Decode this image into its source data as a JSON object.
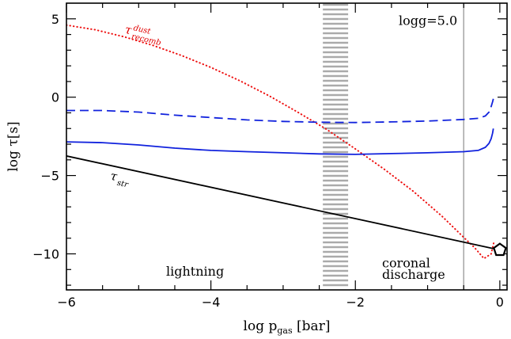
{
  "chart_data": {
    "type": "line",
    "xlabel": {
      "main": "log p",
      "sub": "gas",
      "unit": " [bar]"
    },
    "ylabel": "log τ[s]",
    "xlim": [
      -6.0,
      0.1
    ],
    "ylim": [
      -12.3,
      6.0
    ],
    "xticks": [
      {
        "value": -6,
        "label": "−6"
      },
      {
        "value": -4,
        "label": "−4"
      },
      {
        "value": -2,
        "label": "−2"
      },
      {
        "value": 0,
        "label": "0"
      }
    ],
    "yticks": [
      {
        "value": 5,
        "label": "5"
      },
      {
        "value": 0,
        "label": "0"
      },
      {
        "value": -5,
        "label": "−5"
      },
      {
        "value": -10,
        "label": "−10"
      }
    ],
    "series": [
      {
        "key": "tau-dust-recomb",
        "style": "dotted",
        "color": "#ee1111",
        "x": [
          -6.0,
          -5.6,
          -5.2,
          -4.8,
          -4.4,
          -4.0,
          -3.6,
          -3.2,
          -2.8,
          -2.4,
          -2.0,
          -1.6,
          -1.2,
          -0.8,
          -0.5,
          -0.35,
          -0.22,
          -0.12,
          -0.08
        ],
        "y": [
          4.6,
          4.3,
          3.85,
          3.3,
          2.65,
          1.9,
          1.05,
          0.1,
          -0.95,
          -2.05,
          -3.3,
          -4.6,
          -6.0,
          -7.6,
          -8.95,
          -9.6,
          -10.3,
          -10.0,
          -9.2
        ]
      },
      {
        "key": "tau-upper-dashed",
        "style": "dashed",
        "color": "#1122dd",
        "x": [
          -6.0,
          -5.5,
          -5.0,
          -4.5,
          -4.0,
          -3.5,
          -3.0,
          -2.5,
          -2.0,
          -1.5,
          -1.0,
          -0.5,
          -0.3,
          -0.2,
          -0.15,
          -0.12,
          -0.1,
          -0.09
        ],
        "y": [
          -0.85,
          -0.85,
          -0.95,
          -1.15,
          -1.3,
          -1.45,
          -1.55,
          -1.6,
          -1.62,
          -1.58,
          -1.52,
          -1.42,
          -1.35,
          -1.2,
          -0.95,
          -0.6,
          -0.3,
          -0.1
        ]
      },
      {
        "key": "tau-lower-solid",
        "style": "solid",
        "color": "#1122dd",
        "x": [
          -6.0,
          -5.5,
          -5.0,
          -4.5,
          -4.0,
          -3.5,
          -3.0,
          -2.5,
          -2.0,
          -1.5,
          -1.0,
          -0.5,
          -0.3,
          -0.2,
          -0.15,
          -0.12,
          -0.1,
          -0.09
        ],
        "y": [
          -2.85,
          -2.9,
          -3.05,
          -3.25,
          -3.4,
          -3.48,
          -3.55,
          -3.62,
          -3.65,
          -3.6,
          -3.55,
          -3.48,
          -3.4,
          -3.2,
          -2.95,
          -2.65,
          -2.3,
          -2.0
        ]
      },
      {
        "key": "tau-str",
        "style": "solid",
        "color": "#000000",
        "x": [
          -6.0,
          0.0
        ],
        "y": [
          -3.75,
          -9.75
        ]
      }
    ],
    "vertical_band": {
      "from": -2.45,
      "to": -2.1,
      "color": "#aaaaaa"
    },
    "vertical_line": {
      "x": -0.5,
      "color": "#aaaaaa"
    },
    "marker": {
      "x": 0.0,
      "y": -9.75,
      "shape": "pentagon"
    },
    "annotations": [
      {
        "key": "logg",
        "text": "logg=5.0",
        "x": -1.4,
        "y": 4.6
      },
      {
        "key": "lightning",
        "text": "lightning",
        "x": -4.62,
        "y": -11.4
      },
      {
        "key": "coronal",
        "text": "coronal",
        "x": -1.63,
        "y": -10.85
      },
      {
        "key": "discharge",
        "text": "discharge",
        "x": -1.63,
        "y": -11.6
      },
      {
        "key": "tau-dust",
        "main": "τ",
        "sup": "dust",
        "sub": "recomb",
        "x": -5.2,
        "y": 4.1,
        "rotate": 13
      },
      {
        "key": "tau-str-label",
        "main": "τ",
        "sub": "str",
        "x": -5.4,
        "y": -5.25,
        "rotate": 12
      }
    ]
  }
}
